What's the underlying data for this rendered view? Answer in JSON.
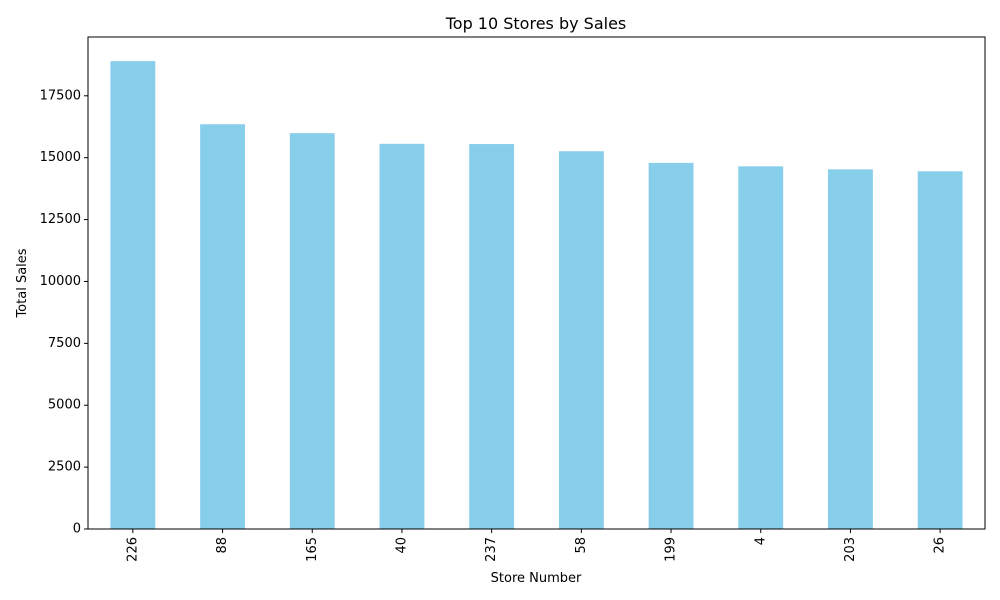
{
  "chart_data": {
    "type": "bar",
    "title": "Top 10 Stores by Sales",
    "xlabel": "Store Number",
    "ylabel": "Total Sales",
    "categories": [
      "226",
      "88",
      "165",
      "40",
      "237",
      "58",
      "199",
      "4",
      "203",
      "26"
    ],
    "values": [
      18900,
      16350,
      15990,
      15560,
      15550,
      15260,
      14790,
      14650,
      14530,
      14450
    ],
    "ylim": [
      0,
      19875
    ],
    "yticks": [
      0,
      2500,
      5000,
      7500,
      10000,
      12500,
      15000,
      17500
    ],
    "bar_color": "#87ceeb",
    "grid": false,
    "x_tick_rotation": "vertical"
  }
}
